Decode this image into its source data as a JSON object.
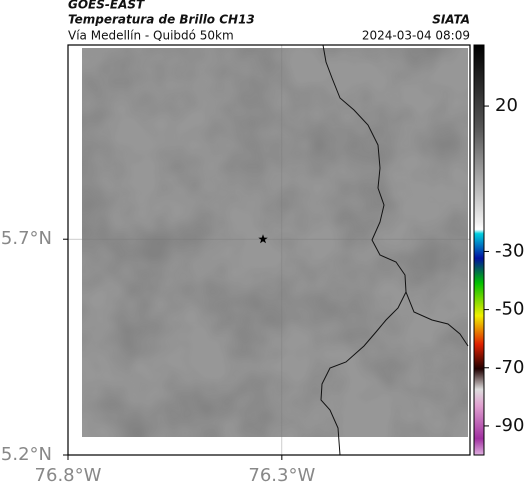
{
  "header": {
    "satellite": "GOES-EAST",
    "product": "Temperatura de Brillo CH13",
    "region": "Vía Medellín - Quibdó 50km",
    "source": "SIATA",
    "datetime": "2024-03-04 08:09"
  },
  "map": {
    "xlim": [
      -76.8,
      -75.86
    ],
    "ylim": [
      5.2,
      6.15
    ],
    "xticks": [
      {
        "value": -76.8,
        "label": "76.8°W"
      },
      {
        "value": -76.3,
        "label": "76.3°W"
      }
    ],
    "yticks": [
      {
        "value": 5.2,
        "label": "5.2°N"
      },
      {
        "value": 5.7,
        "label": "5.7°N"
      }
    ],
    "grid": true,
    "marker": {
      "lon": -76.344,
      "lat": 5.7
    }
  },
  "colorbar": {
    "lim": [
      41,
      -100
    ],
    "ticks": [
      20,
      -30,
      -50,
      -70,
      -90
    ]
  }
}
